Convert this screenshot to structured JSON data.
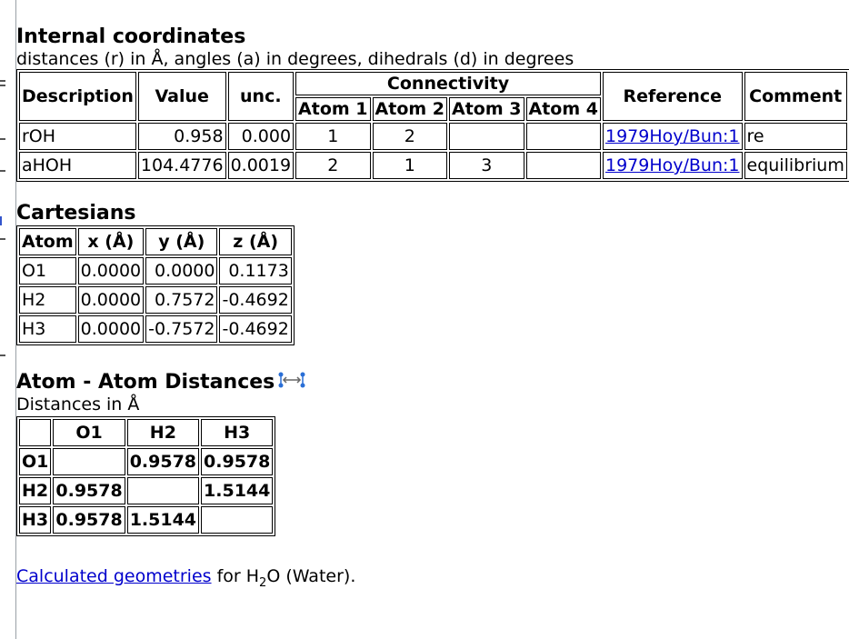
{
  "internal": {
    "title": "Internal coordinates",
    "subtitle": "distances (r) in Å, angles (a) in degrees, dihedrals (d) in degrees",
    "headers": {
      "description": "Description",
      "value": "Value",
      "unc": "unc.",
      "connectivity": "Connectivity",
      "atom1": "Atom 1",
      "atom2": "Atom 2",
      "atom3": "Atom 3",
      "atom4": "Atom 4",
      "reference": "Reference",
      "comment": "Comment"
    },
    "rows": [
      {
        "description": "rOH",
        "value": "0.958",
        "unc": "0.000",
        "atom1": "1",
        "atom2": "2",
        "atom3": "",
        "atom4": "",
        "reference": "1979Hoy/Bun:1",
        "comment": "re"
      },
      {
        "description": "aHOH",
        "value": "104.4776",
        "unc": "0.0019",
        "atom1": "2",
        "atom2": "1",
        "atom3": "3",
        "atom4": "",
        "reference": "1979Hoy/Bun:1",
        "comment": "equilibrium"
      }
    ]
  },
  "cartesians": {
    "title": "Cartesians",
    "headers": {
      "atom": "Atom",
      "x": "x (Å)",
      "y": "y (Å)",
      "z": "z (Å)"
    },
    "rows": [
      {
        "atom": "O1",
        "x": "0.0000",
        "y": "0.0000",
        "z": "0.1173"
      },
      {
        "atom": "H2",
        "x": "0.0000",
        "y": "0.7572",
        "z": "-0.4692"
      },
      {
        "atom": "H3",
        "x": "0.0000",
        "y": "-0.7572",
        "z": "-0.4692"
      }
    ]
  },
  "distances": {
    "title": "Atom - Atom Distances",
    "icon": "distance-icon",
    "subtitle": "Distances in Å",
    "cols": [
      "O1",
      "H2",
      "H3"
    ],
    "rows": [
      {
        "atom": "O1",
        "cells": [
          "",
          "0.9578",
          "0.9578"
        ]
      },
      {
        "atom": "H2",
        "cells": [
          "0.9578",
          "",
          "1.5144"
        ]
      },
      {
        "atom": "H3",
        "cells": [
          "0.9578",
          "1.5144",
          ""
        ]
      }
    ]
  },
  "footer": {
    "link": "Calculated geometries",
    "text_before_sub": " for H",
    "sub": "2",
    "text_after_sub": "O (Water)."
  },
  "colors": {
    "link": "#0000cc",
    "border": "#000000"
  }
}
